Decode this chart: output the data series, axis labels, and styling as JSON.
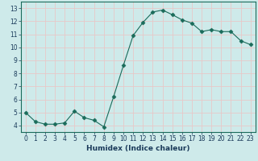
{
  "x": [
    0,
    1,
    2,
    3,
    4,
    5,
    6,
    7,
    8,
    9,
    10,
    11,
    12,
    13,
    14,
    15,
    16,
    17,
    18,
    19,
    20,
    21,
    22,
    23
  ],
  "y": [
    5.0,
    4.3,
    4.1,
    4.1,
    4.2,
    5.1,
    4.6,
    4.4,
    3.9,
    6.2,
    8.6,
    10.9,
    11.9,
    12.7,
    12.85,
    12.5,
    12.1,
    11.85,
    11.2,
    11.35,
    11.2,
    11.2,
    10.5,
    10.2
  ],
  "line_color": "#1a6b5a",
  "marker": "D",
  "marker_size": 2.5,
  "bg_color": "#ceeaea",
  "grid_color": "#e8c8c8",
  "xlabel": "Humidex (Indice chaleur)",
  "xlim": [
    -0.5,
    23.5
  ],
  "ylim": [
    3.5,
    13.5
  ],
  "yticks": [
    4,
    5,
    6,
    7,
    8,
    9,
    10,
    11,
    12,
    13
  ],
  "xticks": [
    0,
    1,
    2,
    3,
    4,
    5,
    6,
    7,
    8,
    9,
    10,
    11,
    12,
    13,
    14,
    15,
    16,
    17,
    18,
    19,
    20,
    21,
    22,
    23
  ],
  "tick_fontsize": 5.5,
  "xlabel_fontsize": 6.5
}
